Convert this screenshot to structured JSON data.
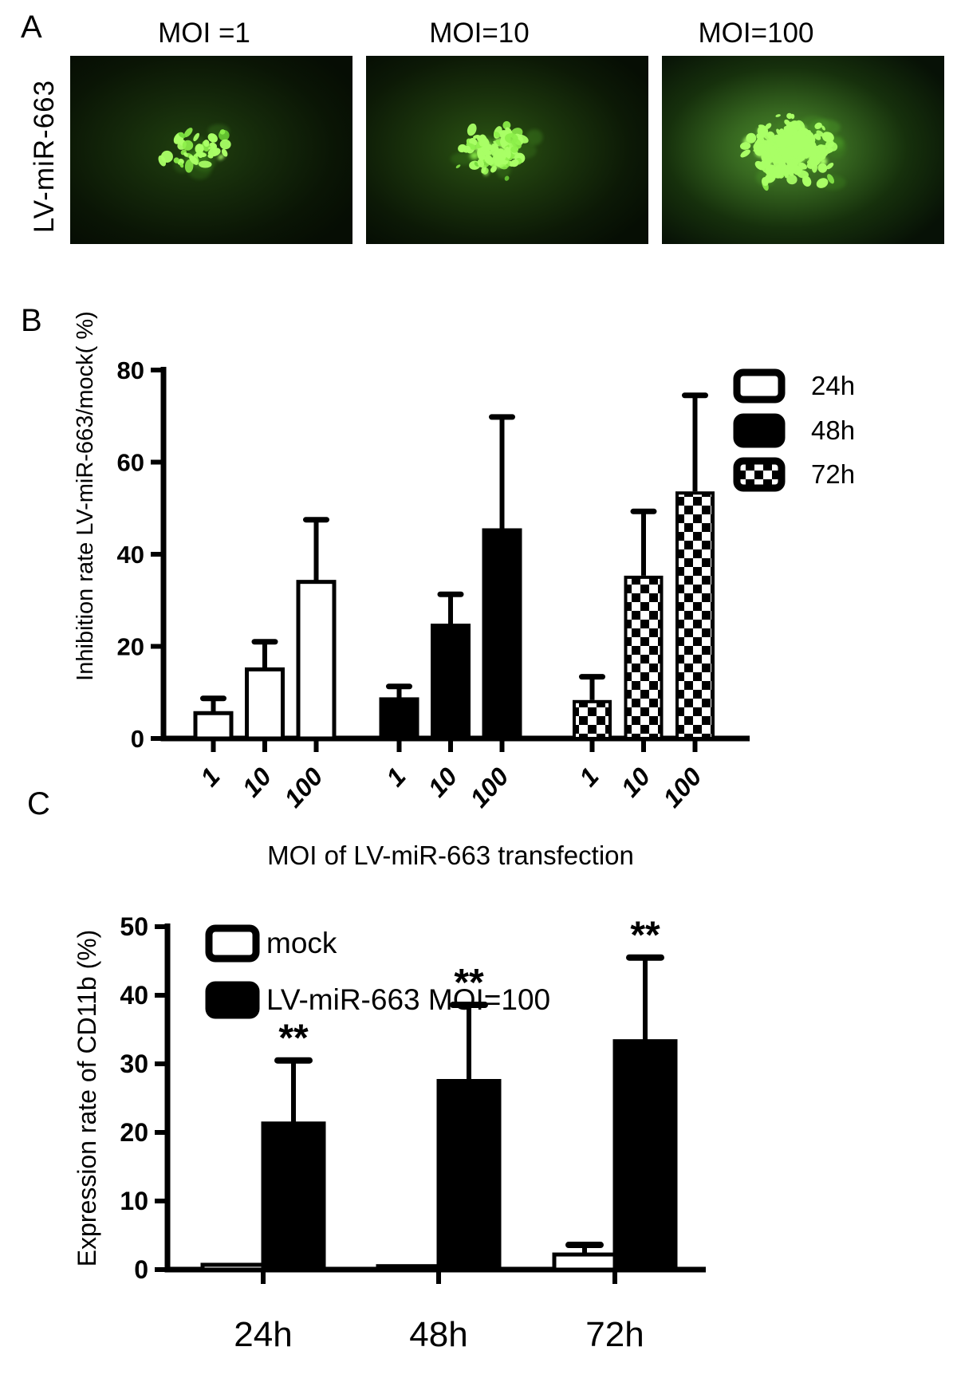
{
  "labels": {
    "a": "A",
    "b": "B",
    "c": "C"
  },
  "panel_a": {
    "row_label": "LV-miR-663",
    "colors": {
      "fluorescence_green": "#6fd636",
      "bright_cell_green": "#a9ff66",
      "background_dark": "#060d04"
    },
    "images": [
      {
        "title": "MOI =1",
        "cell_count": 36,
        "glow_level": "dim"
      },
      {
        "title": "MOI=10",
        "cell_count": 92,
        "glow_level": "medium"
      },
      {
        "title": "MOI=100",
        "cell_count": 235,
        "glow_level": "bright"
      }
    ]
  },
  "chart_data": [
    {
      "id": "moi-inhibition",
      "type": "bar",
      "xlabel": "MOI of LV-miR-663 transfection",
      "ylabel": "Inhibition rate LV-miR-663/mock( %)",
      "ylim": [
        0,
        80
      ],
      "yticks": [
        0,
        20,
        40,
        60,
        80
      ],
      "group_tick_labels": [
        "1",
        "10",
        "100"
      ],
      "legend_position": "top-right",
      "series": [
        {
          "name": "24h",
          "style": "white",
          "values": [
            5.5,
            15,
            34
          ],
          "errors": [
            3.2,
            6,
            13.5
          ]
        },
        {
          "name": "48h",
          "style": "black",
          "values": [
            8.5,
            24.5,
            45.2
          ],
          "errors": [
            2.8,
            6.8,
            24.6
          ]
        },
        {
          "name": "72h",
          "style": "checker",
          "values": [
            8,
            35,
            53.3
          ],
          "errors": [
            5.4,
            14.3,
            21.2
          ]
        }
      ]
    },
    {
      "id": "cd11b-expression",
      "type": "bar",
      "categories": [
        "24h",
        "48h",
        "72h"
      ],
      "ylabel": "Expression rate of CD11b (%)",
      "ylim": [
        0,
        50
      ],
      "yticks": [
        0,
        10,
        20,
        30,
        40,
        50
      ],
      "legend_position": "top-left",
      "series": [
        {
          "name": "mock",
          "style": "white",
          "values": [
            0.7,
            0.5,
            2.2
          ],
          "errors": [
            0,
            0,
            1.4
          ],
          "significance": [
            "",
            "",
            ""
          ]
        },
        {
          "name": "LV-miR-663 MOI=100",
          "style": "black",
          "values": [
            21.3,
            27.5,
            33.3
          ],
          "errors": [
            9.2,
            11.1,
            12.2
          ],
          "significance": [
            "**",
            "**",
            "**"
          ]
        }
      ]
    }
  ]
}
